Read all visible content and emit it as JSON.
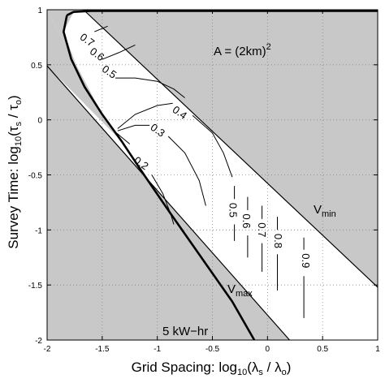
{
  "chart_data": {
    "type": "line",
    "title": "",
    "xlim": [
      -2,
      1
    ],
    "ylim": [
      -2,
      1
    ],
    "x_ticks": [
      "-2",
      "-1.5",
      "-1",
      "-0.5",
      "0",
      "0.5",
      "1"
    ],
    "y_ticks": [
      "-2",
      "-1.5",
      "-1",
      "-0.5",
      "0",
      "0.5",
      "1"
    ],
    "xlabel": {
      "prefix": "Grid Spacing:  log",
      "base": "10",
      "open": "(λ",
      "num_sub": "s",
      "mid": " / λ",
      "den_sub": "o",
      "close": ")"
    },
    "ylabel": {
      "prefix": "Survey Time:  log",
      "base": "10",
      "open": "(τ",
      "num_sub": "s",
      "mid": " / τ",
      "den_sub": "o",
      "close": ")"
    },
    "grid": true,
    "shaded_region_color": "#c8c8c8",
    "annotations": {
      "area": {
        "text": "A = (2km)",
        "sup": "2"
      },
      "vmin": {
        "main": "V",
        "sub": "min"
      },
      "vmax": {
        "main": "V",
        "sub": "max"
      },
      "energy": "5 kW−hr"
    },
    "boundaries": {
      "vmin_line": [
        [
          -1.67,
          1
        ],
        [
          1,
          -1.52
        ]
      ],
      "vmax_line": [
        [
          -2,
          0.49
        ],
        [
          0.2,
          -2
        ]
      ],
      "energy_curve": [
        [
          -1.82,
          0.95
        ],
        [
          -1.76,
          0.98
        ],
        [
          -1.6,
          0.99
        ],
        [
          -1.3,
          0.99
        ],
        [
          1,
          0.99
        ],
        null,
        [
          -1.82,
          0.95
        ],
        [
          -1.85,
          0.8
        ],
        [
          -1.78,
          0.55
        ],
        [
          -1.66,
          0.3
        ],
        [
          -1.5,
          0.05
        ],
        [
          -1.32,
          -0.2
        ],
        [
          -1.12,
          -0.5
        ],
        [
          -0.88,
          -0.85
        ],
        [
          -0.6,
          -1.25
        ],
        [
          -0.32,
          -1.65
        ],
        [
          -0.12,
          -2
        ]
      ]
    },
    "contours": [
      {
        "label": "0.7",
        "label_xy": [
          -1.64,
          0.72
        ],
        "points": [
          [
            -1.57,
            0.8
          ],
          [
            -1.45,
            0.85
          ]
        ]
      },
      {
        "label": "0.6",
        "label_xy": [
          -1.55,
          0.59
        ],
        "points": [
          [
            -1.5,
            0.55
          ],
          [
            -1.35,
            0.61
          ],
          [
            -1.2,
            0.68
          ]
        ]
      },
      {
        "label": "0.5",
        "label_xy": [
          -1.44,
          0.43
        ],
        "points": [
          [
            -1.38,
            0.38
          ],
          [
            -1.2,
            0.38
          ],
          [
            -1.0,
            0.35
          ],
          [
            -0.85,
            0.28
          ],
          [
            -0.75,
            0.2
          ]
        ]
      },
      {
        "label": "0.4",
        "label_xy": [
          -0.8,
          0.06
        ],
        "points": [
          [
            -1.36,
            -0.08
          ],
          [
            -1.2,
            0.05
          ],
          [
            -1.0,
            0.13
          ],
          [
            -0.86,
            0.15
          ],
          null,
          [
            -0.68,
            0.04
          ],
          [
            -0.5,
            -0.12
          ],
          [
            -0.4,
            -0.3
          ],
          [
            -0.32,
            -0.52
          ]
        ]
      },
      {
        "label": "0.3",
        "label_xy": [
          -1.0,
          -0.1
        ],
        "points": [
          [
            -1.36,
            -0.1
          ],
          [
            -1.2,
            -0.05
          ],
          [
            -1.07,
            -0.05
          ],
          null,
          [
            -0.9,
            -0.15
          ],
          [
            -0.75,
            -0.3
          ],
          [
            -0.62,
            -0.55
          ],
          [
            -0.56,
            -0.78
          ]
        ]
      },
      {
        "label": "0.2",
        "label_xy": [
          -1.15,
          -0.4
        ],
        "points": [
          [
            -1.37,
            -0.12
          ],
          [
            -1.25,
            -0.22
          ],
          null,
          [
            -1.05,
            -0.5
          ],
          [
            -0.95,
            -0.67
          ],
          [
            -0.88,
            -0.85
          ],
          [
            -0.85,
            -0.95
          ]
        ]
      },
      {
        "label": "0.5",
        "label_xy": [
          -0.32,
          -0.82
        ],
        "points": [
          [
            -0.3,
            -0.6
          ],
          [
            -0.3,
            -0.72
          ],
          null,
          [
            -0.3,
            -0.95
          ],
          [
            -0.3,
            -1.1
          ]
        ]
      },
      {
        "label": "0.6",
        "label_xy": [
          -0.2,
          -0.92
        ],
        "points": [
          [
            -0.18,
            -0.7
          ],
          [
            -0.18,
            -0.82
          ],
          null,
          [
            -0.18,
            -1.05
          ],
          [
            -0.18,
            -1.25
          ]
        ]
      },
      {
        "label": "0.7",
        "label_xy": [
          -0.06,
          -1.0
        ],
        "points": [
          [
            -0.05,
            -0.78
          ],
          [
            -0.05,
            -0.9
          ],
          null,
          [
            -0.05,
            -1.12
          ],
          [
            -0.05,
            -1.38
          ]
        ]
      },
      {
        "label": "0.8",
        "label_xy": [
          0.09,
          -1.1
        ],
        "points": [
          [
            0.09,
            -0.88
          ],
          [
            0.09,
            -1.0
          ],
          null,
          [
            0.09,
            -1.22
          ],
          [
            0.09,
            -1.55
          ]
        ]
      },
      {
        "label": "0.9",
        "label_xy": [
          0.34,
          -1.28
        ],
        "points": [
          [
            0.33,
            -1.07
          ],
          [
            0.33,
            -1.18
          ],
          null,
          [
            0.33,
            -1.42
          ],
          [
            0.33,
            -1.8
          ]
        ]
      }
    ]
  }
}
